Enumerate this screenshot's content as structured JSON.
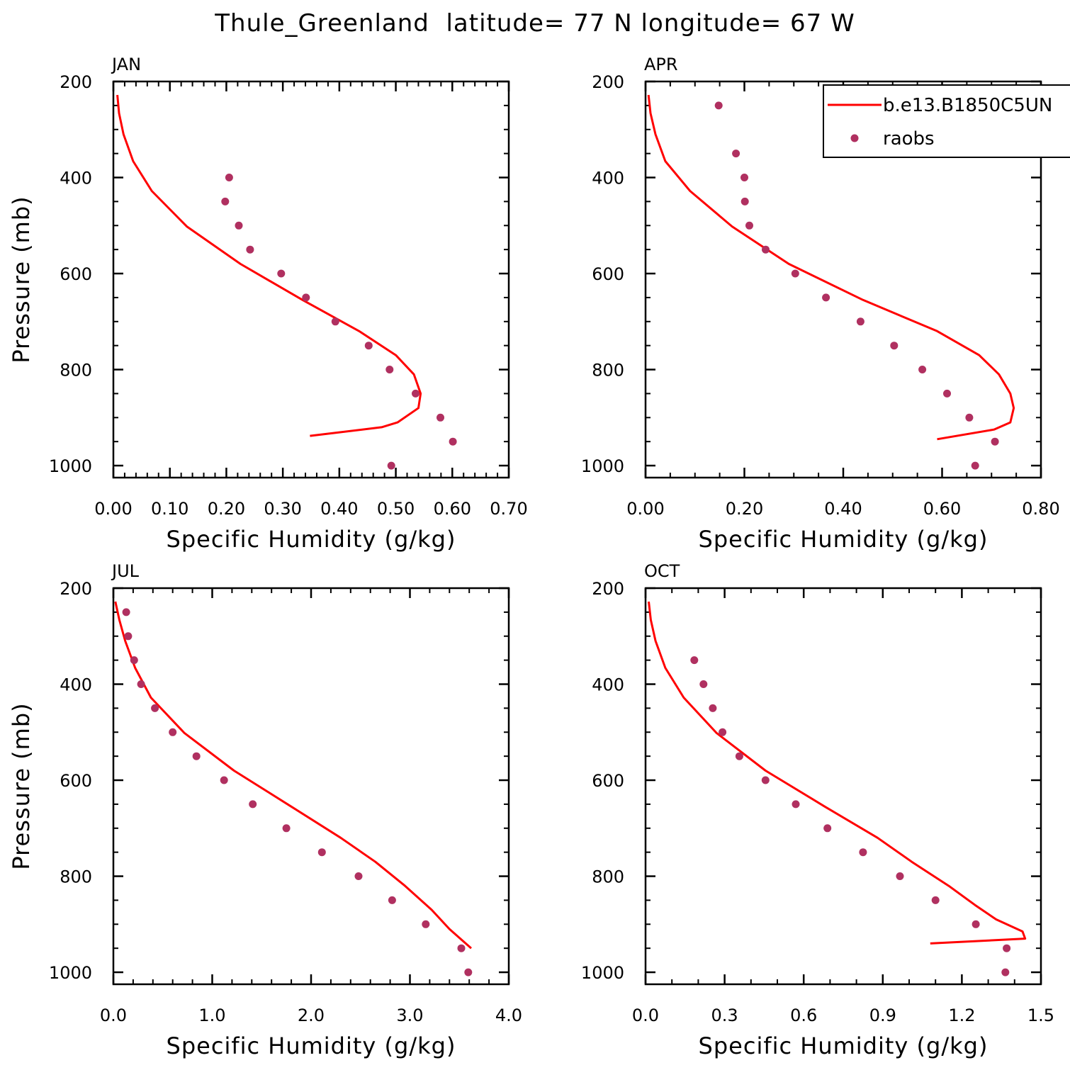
{
  "chart_data": {
    "type": "line",
    "title": "Thule_Greenland  latitude= 77 N longitude= 67 W",
    "legend": {
      "placement": "top-right of APR panel",
      "entries": [
        {
          "name": "b.e13.B1850C5UN",
          "kind": "line",
          "color": "#ff0000"
        },
        {
          "name": "raobs",
          "kind": "marker",
          "color": "#b03060"
        }
      ]
    },
    "panels": [
      {
        "label": "JAN",
        "xlabel": "Specific Humidity (g/kg)",
        "ylabel": "Pressure (mb)",
        "xlim": [
          0,
          0.7
        ],
        "ylim": [
          200,
          1025
        ],
        "xticks": [
          0,
          0.1,
          0.2,
          0.3,
          0.4,
          0.5,
          0.6,
          0.7
        ],
        "xtick_labels": [
          "0.00",
          "0.10",
          "0.20",
          "0.30",
          "0.40",
          "0.50",
          "0.60",
          "0.70"
        ],
        "yticks": [
          200,
          400,
          600,
          800,
          1000
        ],
        "ytick_labels": [
          "200",
          "400",
          "600",
          "800",
          "1000"
        ],
        "series": [
          {
            "name": "b.e13.B1850C5UN",
            "kind": "line",
            "x": [
              0.007,
              0.01,
              0.018,
              0.035,
              0.068,
              0.13,
              0.225,
              0.335,
              0.435,
              0.5,
              0.532,
              0.544,
              0.54,
              0.503,
              0.475,
              0.348
            ],
            "y": [
              228,
              266,
              310,
              366,
              428,
              502,
              580,
              655,
              720,
              770,
              810,
              850,
              880,
              910,
              920,
              938
            ]
          },
          {
            "name": "raobs",
            "kind": "markers",
            "x": [
              0.205,
              0.198,
              0.222,
              0.242,
              0.297,
              0.341,
              0.393,
              0.452,
              0.489,
              0.535,
              0.579,
              0.601,
              0.492
            ],
            "y": [
              400,
              450,
              500,
              550,
              600,
              650,
              700,
              750,
              800,
              850,
              900,
              950,
              1000
            ]
          }
        ]
      },
      {
        "label": "APR",
        "xlabel": "Specific Humidity (g/kg)",
        "ylabel": "",
        "xlim": [
          0,
          0.8
        ],
        "ylim": [
          200,
          1025
        ],
        "xticks": [
          0,
          0.2,
          0.4,
          0.6,
          0.8
        ],
        "xtick_labels": [
          "0.00",
          "0.20",
          "0.40",
          "0.60",
          "0.80"
        ],
        "yticks": [
          200,
          400,
          600,
          800,
          1000
        ],
        "ytick_labels": [
          "200",
          "400",
          "600",
          "800",
          "1000"
        ],
        "series": [
          {
            "name": "b.e13.B1850C5UN",
            "kind": "line",
            "x": [
              0.006,
              0.01,
              0.02,
              0.04,
              0.09,
              0.175,
              0.29,
              0.44,
              0.59,
              0.675,
              0.715,
              0.738,
              0.745,
              0.738,
              0.705,
              0.59
            ],
            "y": [
              228,
              266,
              310,
              366,
              428,
              502,
              580,
              655,
              720,
              770,
              810,
              850,
              880,
              910,
              925,
              945
            ]
          },
          {
            "name": "raobs",
            "kind": "markers",
            "x": [
              0.148,
              0.183,
              0.2,
              0.201,
              0.21,
              0.243,
              0.303,
              0.365,
              0.435,
              0.503,
              0.56,
              0.61,
              0.655,
              0.707,
              0.667
            ],
            "y": [
              250,
              350,
              400,
              450,
              500,
              550,
              600,
              650,
              700,
              750,
              800,
              850,
              900,
              950,
              1000
            ]
          }
        ]
      },
      {
        "label": "JUL",
        "xlabel": "Specific Humidity (g/kg)",
        "ylabel": "Pressure (mb)",
        "xlim": [
          0,
          4.0
        ],
        "ylim": [
          200,
          1025
        ],
        "xticks": [
          0,
          1,
          2,
          3,
          4
        ],
        "xtick_labels": [
          "0.0",
          "1.0",
          "2.0",
          "3.0",
          "4.0"
        ],
        "yticks": [
          200,
          400,
          600,
          800,
          1000
        ],
        "ytick_labels": [
          "200",
          "400",
          "600",
          "800",
          "1000"
        ],
        "series": [
          {
            "name": "b.e13.B1850C5UN",
            "kind": "line",
            "x": [
              0.02,
              0.06,
              0.12,
              0.22,
              0.38,
              0.72,
              1.22,
              1.8,
              2.3,
              2.65,
              2.95,
              3.22,
              3.4,
              3.62
            ],
            "y": [
              228,
              266,
              310,
              366,
              428,
              502,
              580,
              655,
              720,
              770,
              820,
              870,
              910,
              950
            ]
          },
          {
            "name": "raobs",
            "kind": "markers",
            "x": [
              0.13,
              0.15,
              0.21,
              0.28,
              0.42,
              0.6,
              0.84,
              1.12,
              1.41,
              1.75,
              2.11,
              2.48,
              2.82,
              3.16,
              3.52,
              3.59
            ],
            "y": [
              250,
              300,
              350,
              400,
              450,
              500,
              550,
              600,
              650,
              700,
              750,
              800,
              850,
              900,
              950,
              1000
            ]
          }
        ]
      },
      {
        "label": "OCT",
        "xlabel": "Specific Humidity (g/kg)",
        "ylabel": "",
        "xlim": [
          0,
          1.5
        ],
        "ylim": [
          200,
          1025
        ],
        "xticks": [
          0,
          0.3,
          0.6,
          0.9,
          1.2,
          1.5
        ],
        "xtick_labels": [
          "0.0",
          "0.3",
          "0.6",
          "0.9",
          "1.2",
          "1.5"
        ],
        "yticks": [
          200,
          400,
          600,
          800,
          1000
        ],
        "ytick_labels": [
          "200",
          "400",
          "600",
          "800",
          "1000"
        ],
        "series": [
          {
            "name": "b.e13.B1850C5UN",
            "kind": "line",
            "x": [
              0.012,
              0.02,
              0.038,
              0.075,
              0.145,
              0.27,
              0.455,
              0.68,
              0.88,
              1.01,
              1.15,
              1.25,
              1.33,
              1.43,
              1.44,
              1.08
            ],
            "y": [
              228,
              266,
              310,
              366,
              428,
              502,
              580,
              655,
              720,
              770,
              820,
              860,
              890,
              915,
              930,
              940
            ]
          },
          {
            "name": "raobs",
            "kind": "markers",
            "x": [
              0.185,
              0.22,
              0.255,
              0.292,
              0.356,
              0.455,
              0.57,
              0.69,
              0.825,
              0.965,
              1.1,
              1.253,
              1.37,
              1.365
            ],
            "y": [
              350,
              400,
              450,
              500,
              550,
              600,
              650,
              700,
              750,
              800,
              850,
              900,
              950,
              1000
            ]
          }
        ]
      }
    ]
  }
}
